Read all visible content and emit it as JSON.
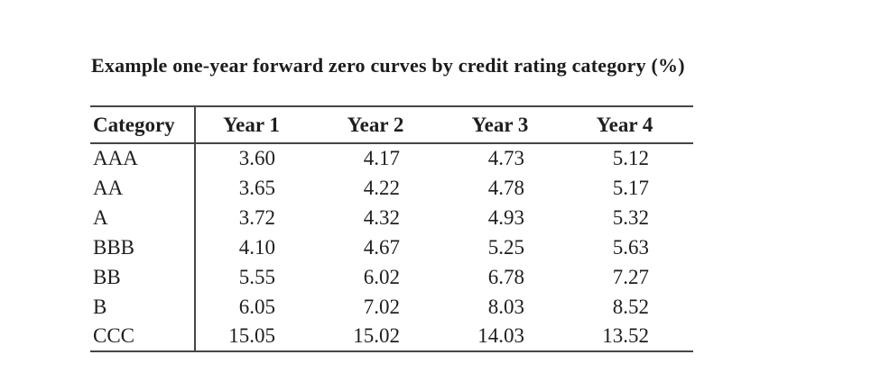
{
  "title": "Example one-year forward zero curves by credit rating category (%)",
  "table": {
    "columns": [
      "Category",
      "Year 1",
      "Year 2",
      "Year 3",
      "Year 4"
    ],
    "rows": [
      [
        "AAA",
        "3.60",
        "4.17",
        "4.73",
        "5.12"
      ],
      [
        "AA",
        "3.65",
        "4.22",
        "4.78",
        "5.17"
      ],
      [
        "A",
        "3.72",
        "4.32",
        "4.93",
        "5.32"
      ],
      [
        "BBB",
        "4.10",
        "4.67",
        "5.25",
        "5.63"
      ],
      [
        "BB",
        "5.55",
        "6.02",
        "6.78",
        "7.27"
      ],
      [
        "B",
        "6.05",
        "7.02",
        "8.03",
        "8.52"
      ],
      [
        "CCC",
        "15.05",
        "15.02",
        "14.03",
        "13.52"
      ]
    ]
  },
  "colors": {
    "text": "#1e1e1e",
    "rule": "#454545",
    "background": "#ffffff"
  },
  "chart_data": {
    "type": "table",
    "title": "Example one-year forward zero curves by credit rating category (%)",
    "columns": [
      "Category",
      "Year 1",
      "Year 2",
      "Year 3",
      "Year 4"
    ],
    "categories": [
      "AAA",
      "AA",
      "A",
      "BBB",
      "BB",
      "B",
      "CCC"
    ],
    "series": [
      {
        "name": "Year 1",
        "values": [
          3.6,
          3.65,
          3.72,
          4.1,
          5.55,
          6.05,
          15.05
        ]
      },
      {
        "name": "Year 2",
        "values": [
          4.17,
          4.22,
          4.32,
          4.67,
          6.02,
          7.02,
          15.02
        ]
      },
      {
        "name": "Year 3",
        "values": [
          4.73,
          4.78,
          4.93,
          5.25,
          6.78,
          8.03,
          14.03
        ]
      },
      {
        "name": "Year 4",
        "values": [
          5.12,
          5.17,
          5.32,
          5.63,
          7.27,
          8.52,
          13.52
        ]
      }
    ],
    "unit": "%"
  }
}
